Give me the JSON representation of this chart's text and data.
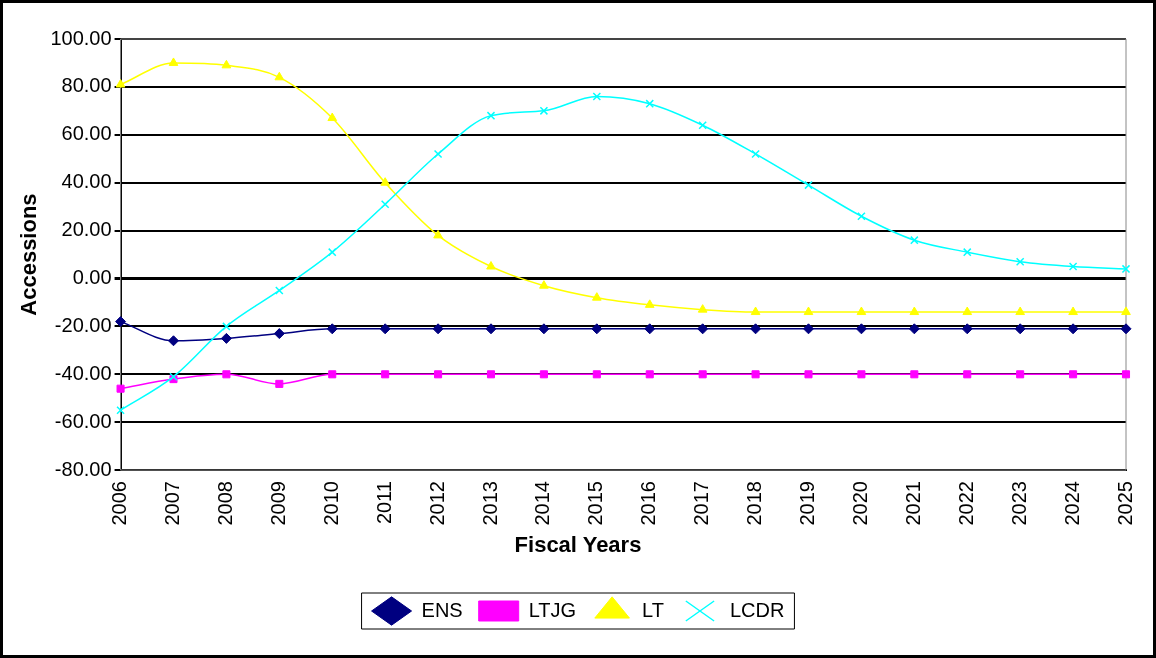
{
  "chart_data": {
    "type": "line",
    "xlabel": "Fiscal Years",
    "ylabel": "Accessions",
    "categories": [
      "2006",
      "2007",
      "2008",
      "2009",
      "2010",
      "2011",
      "2012",
      "2013",
      "2014",
      "2015",
      "2016",
      "2017",
      "2018",
      "2019",
      "2020",
      "2021",
      "2022",
      "2023",
      "2024",
      "2025"
    ],
    "series": [
      {
        "name": "ENS",
        "color": "#000080",
        "marker": "diamond",
        "values": [
          -18,
          -26,
          -25,
          -23,
          -21,
          -21,
          -21,
          -21,
          -21,
          -21,
          -21,
          -21,
          -21,
          -21,
          -21,
          -21,
          -21,
          -21,
          -21,
          -21
        ]
      },
      {
        "name": "LTJG",
        "color": "#ff00ff",
        "marker": "square",
        "values": [
          -46,
          -42,
          -40,
          -44,
          -40,
          -40,
          -40,
          -40,
          -40,
          -40,
          -40,
          -40,
          -40,
          -40,
          -40,
          -40,
          -40,
          -40,
          -40,
          -40
        ]
      },
      {
        "name": "LT",
        "color": "#ffff00",
        "marker": "triangle",
        "values": [
          81,
          90,
          89,
          84,
          67,
          40,
          18,
          5,
          -3,
          -8,
          -11,
          -13,
          -14,
          -14,
          -14,
          -14,
          -14,
          -14,
          -14,
          -14
        ]
      },
      {
        "name": "LCDR",
        "color": "#00ffff",
        "marker": "cross",
        "values": [
          -55,
          -41,
          -20,
          -5,
          11,
          31,
          52,
          68,
          70,
          76,
          73,
          64,
          52,
          39,
          26,
          16,
          11,
          7,
          5,
          4
        ]
      }
    ],
    "ylim": [
      -80,
      100
    ],
    "yticks": [
      {
        "value": -80,
        "label": "-80.00"
      },
      {
        "value": -60,
        "label": "-60.00"
      },
      {
        "value": -40,
        "label": "-40.00"
      },
      {
        "value": -20,
        "label": "-20.00"
      },
      {
        "value": 0,
        "label": "0.00"
      },
      {
        "value": 20,
        "label": "20.00"
      },
      {
        "value": 40,
        "label": "40.00"
      },
      {
        "value": 60,
        "label": "60.00"
      },
      {
        "value": 80,
        "label": "80.00"
      },
      {
        "value": 100,
        "label": "100.00"
      }
    ],
    "grid": "y",
    "legend": "bottom"
  }
}
